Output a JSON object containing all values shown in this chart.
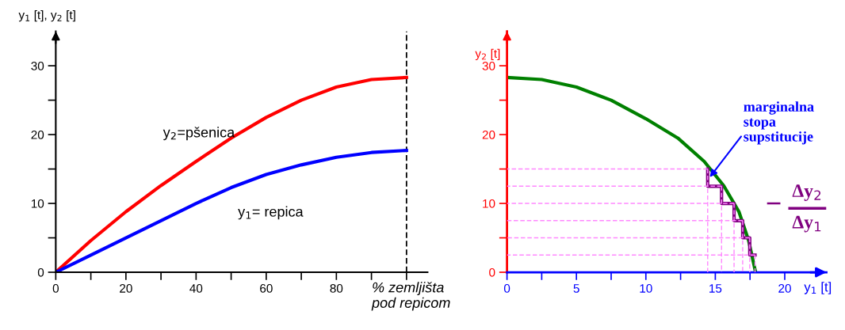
{
  "chart_data": [
    {
      "type": "line",
      "xlabel": "% zemljišta\npod repicom",
      "ylabel": "y$_{1}$ [t], y$_{2}$ [t]",
      "xlim": [
        0,
        106
      ],
      "ylim": [
        0,
        35
      ],
      "xticks": [
        0,
        {
          "value": 10,
          "label": null
        },
        20,
        {
          "value": 30,
          "label": null
        },
        40,
        {
          "value": 50,
          "label": null
        },
        60,
        {
          "value": 70,
          "label": null
        },
        80,
        {
          "value": 90,
          "label": null
        },
        {
          "value": 100,
          "label": null
        }
      ],
      "yticks": [
        0,
        {
          "value": 5,
          "label": null
        },
        10,
        {
          "value": 15,
          "label": null
        },
        20,
        {
          "value": 25,
          "label": null
        },
        30
      ],
      "x": [
        0,
        10,
        20,
        30,
        40,
        50,
        60,
        70,
        80,
        90,
        100
      ],
      "series": [
        {
          "name": "y$_{2}$=pšenica",
          "color": "#ff0000",
          "values": [
            0,
            4.6,
            8.8,
            12.6,
            16.1,
            19.5,
            22.5,
            25.0,
            26.9,
            28.0,
            28.3
          ]
        },
        {
          "name": "y$_{1}$= repica",
          "color": "#0000ff",
          "values": [
            0,
            2.5,
            5.0,
            7.5,
            10.0,
            12.3,
            14.2,
            15.6,
            16.7,
            17.4,
            17.7
          ]
        }
      ],
      "ref_lines": [
        {
          "axis": "x",
          "value": 100,
          "color": "#000000",
          "line_style": "dashed"
        }
      ],
      "grid": false,
      "legend": false,
      "marker": "none"
    },
    {
      "type": "line",
      "xlabel": "y$_{1}$ [t]",
      "ylabel": "y$_{2}$ [t]",
      "xlim": [
        0,
        23
      ],
      "ylim": [
        0,
        35
      ],
      "xticks": [
        0,
        {
          "value": 2.5,
          "label": null
        },
        5,
        {
          "value": 7.5,
          "label": null
        },
        10,
        {
          "value": 12.5,
          "label": null
        },
        15,
        {
          "value": 17.5,
          "label": null
        },
        20
      ],
      "yticks": [
        0,
        {
          "value": 5,
          "label": null
        },
        10,
        {
          "value": 15,
          "label": null
        },
        20,
        {
          "value": 25,
          "label": null
        },
        30
      ],
      "series": [
        {
          "color": "#ff88ff",
          "line_style": "dashed",
          "x": [
            14.45,
            0
          ],
          "values": [
            15,
            15
          ]
        },
        {
          "color": "#ff88ff",
          "line_style": "dashed",
          "x": [
            15.45,
            0
          ],
          "values": [
            12.5,
            12.5
          ]
        },
        {
          "color": "#ff88ff",
          "line_style": "dashed",
          "x": [
            16.35,
            0
          ],
          "values": [
            10,
            10
          ]
        },
        {
          "color": "#ff88ff",
          "line_style": "dashed",
          "x": [
            16.97,
            0
          ],
          "values": [
            7.5,
            7.5
          ]
        },
        {
          "color": "#ff88ff",
          "line_style": "dashed",
          "x": [
            17.48,
            0
          ],
          "values": [
            5,
            5
          ]
        },
        {
          "color": "#ff88ff",
          "line_style": "dashed",
          "x": [
            17.86,
            0
          ],
          "values": [
            2.5,
            2.5
          ]
        },
        {
          "color": "#ff88ff",
          "line_style": "dashed",
          "x": [
            14.45,
            14.45
          ],
          "values": [
            15,
            0
          ]
        },
        {
          "color": "#ff88ff",
          "line_style": "dashed",
          "x": [
            15.45,
            15.45
          ],
          "values": [
            12.5,
            0
          ]
        },
        {
          "color": "#ff88ff",
          "line_style": "dashed",
          "x": [
            16.35,
            16.35
          ],
          "values": [
            10,
            0
          ]
        },
        {
          "color": "#ff88ff",
          "line_style": "dashed",
          "x": [
            16.97,
            16.97
          ],
          "values": [
            7.5,
            0
          ]
        },
        {
          "color": "#ff88ff",
          "line_style": "dashed",
          "x": [
            17.48,
            17.48
          ],
          "values": [
            5,
            0
          ]
        },
        {
          "color": "#ff88ff",
          "line_style": "dashed",
          "x": [
            17.86,
            17.86
          ],
          "values": [
            2.5,
            0
          ]
        },
        {
          "color": "#008000",
          "x": [
            0,
            2.5,
            5,
            7.5,
            10,
            12.3,
            14.2,
            15.6,
            16.7,
            17.4,
            17.9
          ],
          "values": [
            28.3,
            28.0,
            26.9,
            25.0,
            22.3,
            19.5,
            16.1,
            12.6,
            8.8,
            4.6,
            0
          ]
        },
        {
          "type": "step",
          "color": "#800080",
          "x": [
            14.45,
            15.45,
            16.35,
            16.97,
            17.48,
            17.86
          ],
          "values": [
            15,
            12.5,
            10,
            7.5,
            5,
            2.5
          ]
        }
      ],
      "annotations": [
        {
          "text": "marginalna\nstopa\nsupstitucije",
          "x": 14.6,
          "y": 13.8
        },
        "−",
        "Δy$_{2}$",
        "Δy$_{1}$"
      ],
      "grid": false,
      "legend": false,
      "marker": "none"
    }
  ]
}
